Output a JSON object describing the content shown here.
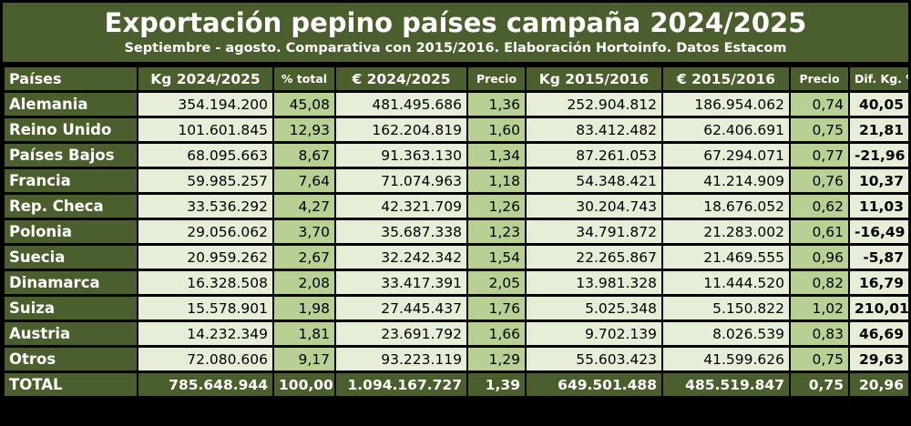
{
  "title": "Exportación pepino países campaña 2024/2025",
  "subtitle": "Septiembre - agosto. Comparativa con 2015/2016. Elaboración Hortoinfo. Datos Estacom",
  "chart_data": {
    "type": "table",
    "columns": [
      "Países",
      "Kg 2024/2025",
      "% total",
      "€ 2024/2025",
      "Precio",
      "Kg 2015/2016",
      "€ 2015/2016",
      "Precio",
      "Dif. Kg. %"
    ],
    "rows": [
      [
        "Alemania",
        "354.194.200",
        "45,08",
        "481.495.686",
        "1,36",
        "252.904.812",
        "186.954.062",
        "0,74",
        "40,05"
      ],
      [
        "Reino Unido",
        "101.601.845",
        "12,93",
        "162.204.819",
        "1,60",
        "83.412.482",
        "62.406.691",
        "0,75",
        "21,81"
      ],
      [
        "Países Bajos",
        "68.095.663",
        "8,67",
        "91.363.130",
        "1,34",
        "87.261.053",
        "67.294.071",
        "0,77",
        "-21,96"
      ],
      [
        "Francia",
        "59.985.257",
        "7,64",
        "71.074.963",
        "1,18",
        "54.348.421",
        "41.214.909",
        "0,76",
        "10,37"
      ],
      [
        "Rep. Checa",
        "33.536.292",
        "4,27",
        "42.321.709",
        "1,26",
        "30.204.743",
        "18.676.052",
        "0,62",
        "11,03"
      ],
      [
        "Polonia",
        "29.056.062",
        "3,70",
        "35.687.338",
        "1,23",
        "34.791.872",
        "21.283.002",
        "0,61",
        "-16,49"
      ],
      [
        "Suecia",
        "20.959.262",
        "2,67",
        "32.242.342",
        "1,54",
        "22.265.867",
        "21.469.555",
        "0,96",
        "-5,87"
      ],
      [
        "Dinamarca",
        "16.328.508",
        "2,08",
        "33.417.391",
        "2,05",
        "13.981.328",
        "11.444.520",
        "0,82",
        "16,79"
      ],
      [
        "Suiza",
        "15.578.901",
        "1,98",
        "27.445.437",
        "1,76",
        "5.025.348",
        "5.150.822",
        "1,02",
        "210,01"
      ],
      [
        "Austria",
        "14.232.349",
        "1,81",
        "23.691.792",
        "1,66",
        "9.702.139",
        "8.026.539",
        "0,83",
        "46,69"
      ],
      [
        "Otros",
        "72.080.606",
        "9,17",
        "93.223.119",
        "1,29",
        "55.603.423",
        "41.599.626",
        "0,75",
        "29,63"
      ]
    ],
    "total": [
      "TOTAL",
      "785.648.944",
      "100,00",
      "1.094.167.727",
      "1,39",
      "649.501.488",
      "485.519.847",
      "0,75",
      "20,96"
    ]
  },
  "colors": {
    "header_green": "#4b5e2d",
    "light_cell": "#e6eed8",
    "mid_cell": "#b8d093"
  }
}
